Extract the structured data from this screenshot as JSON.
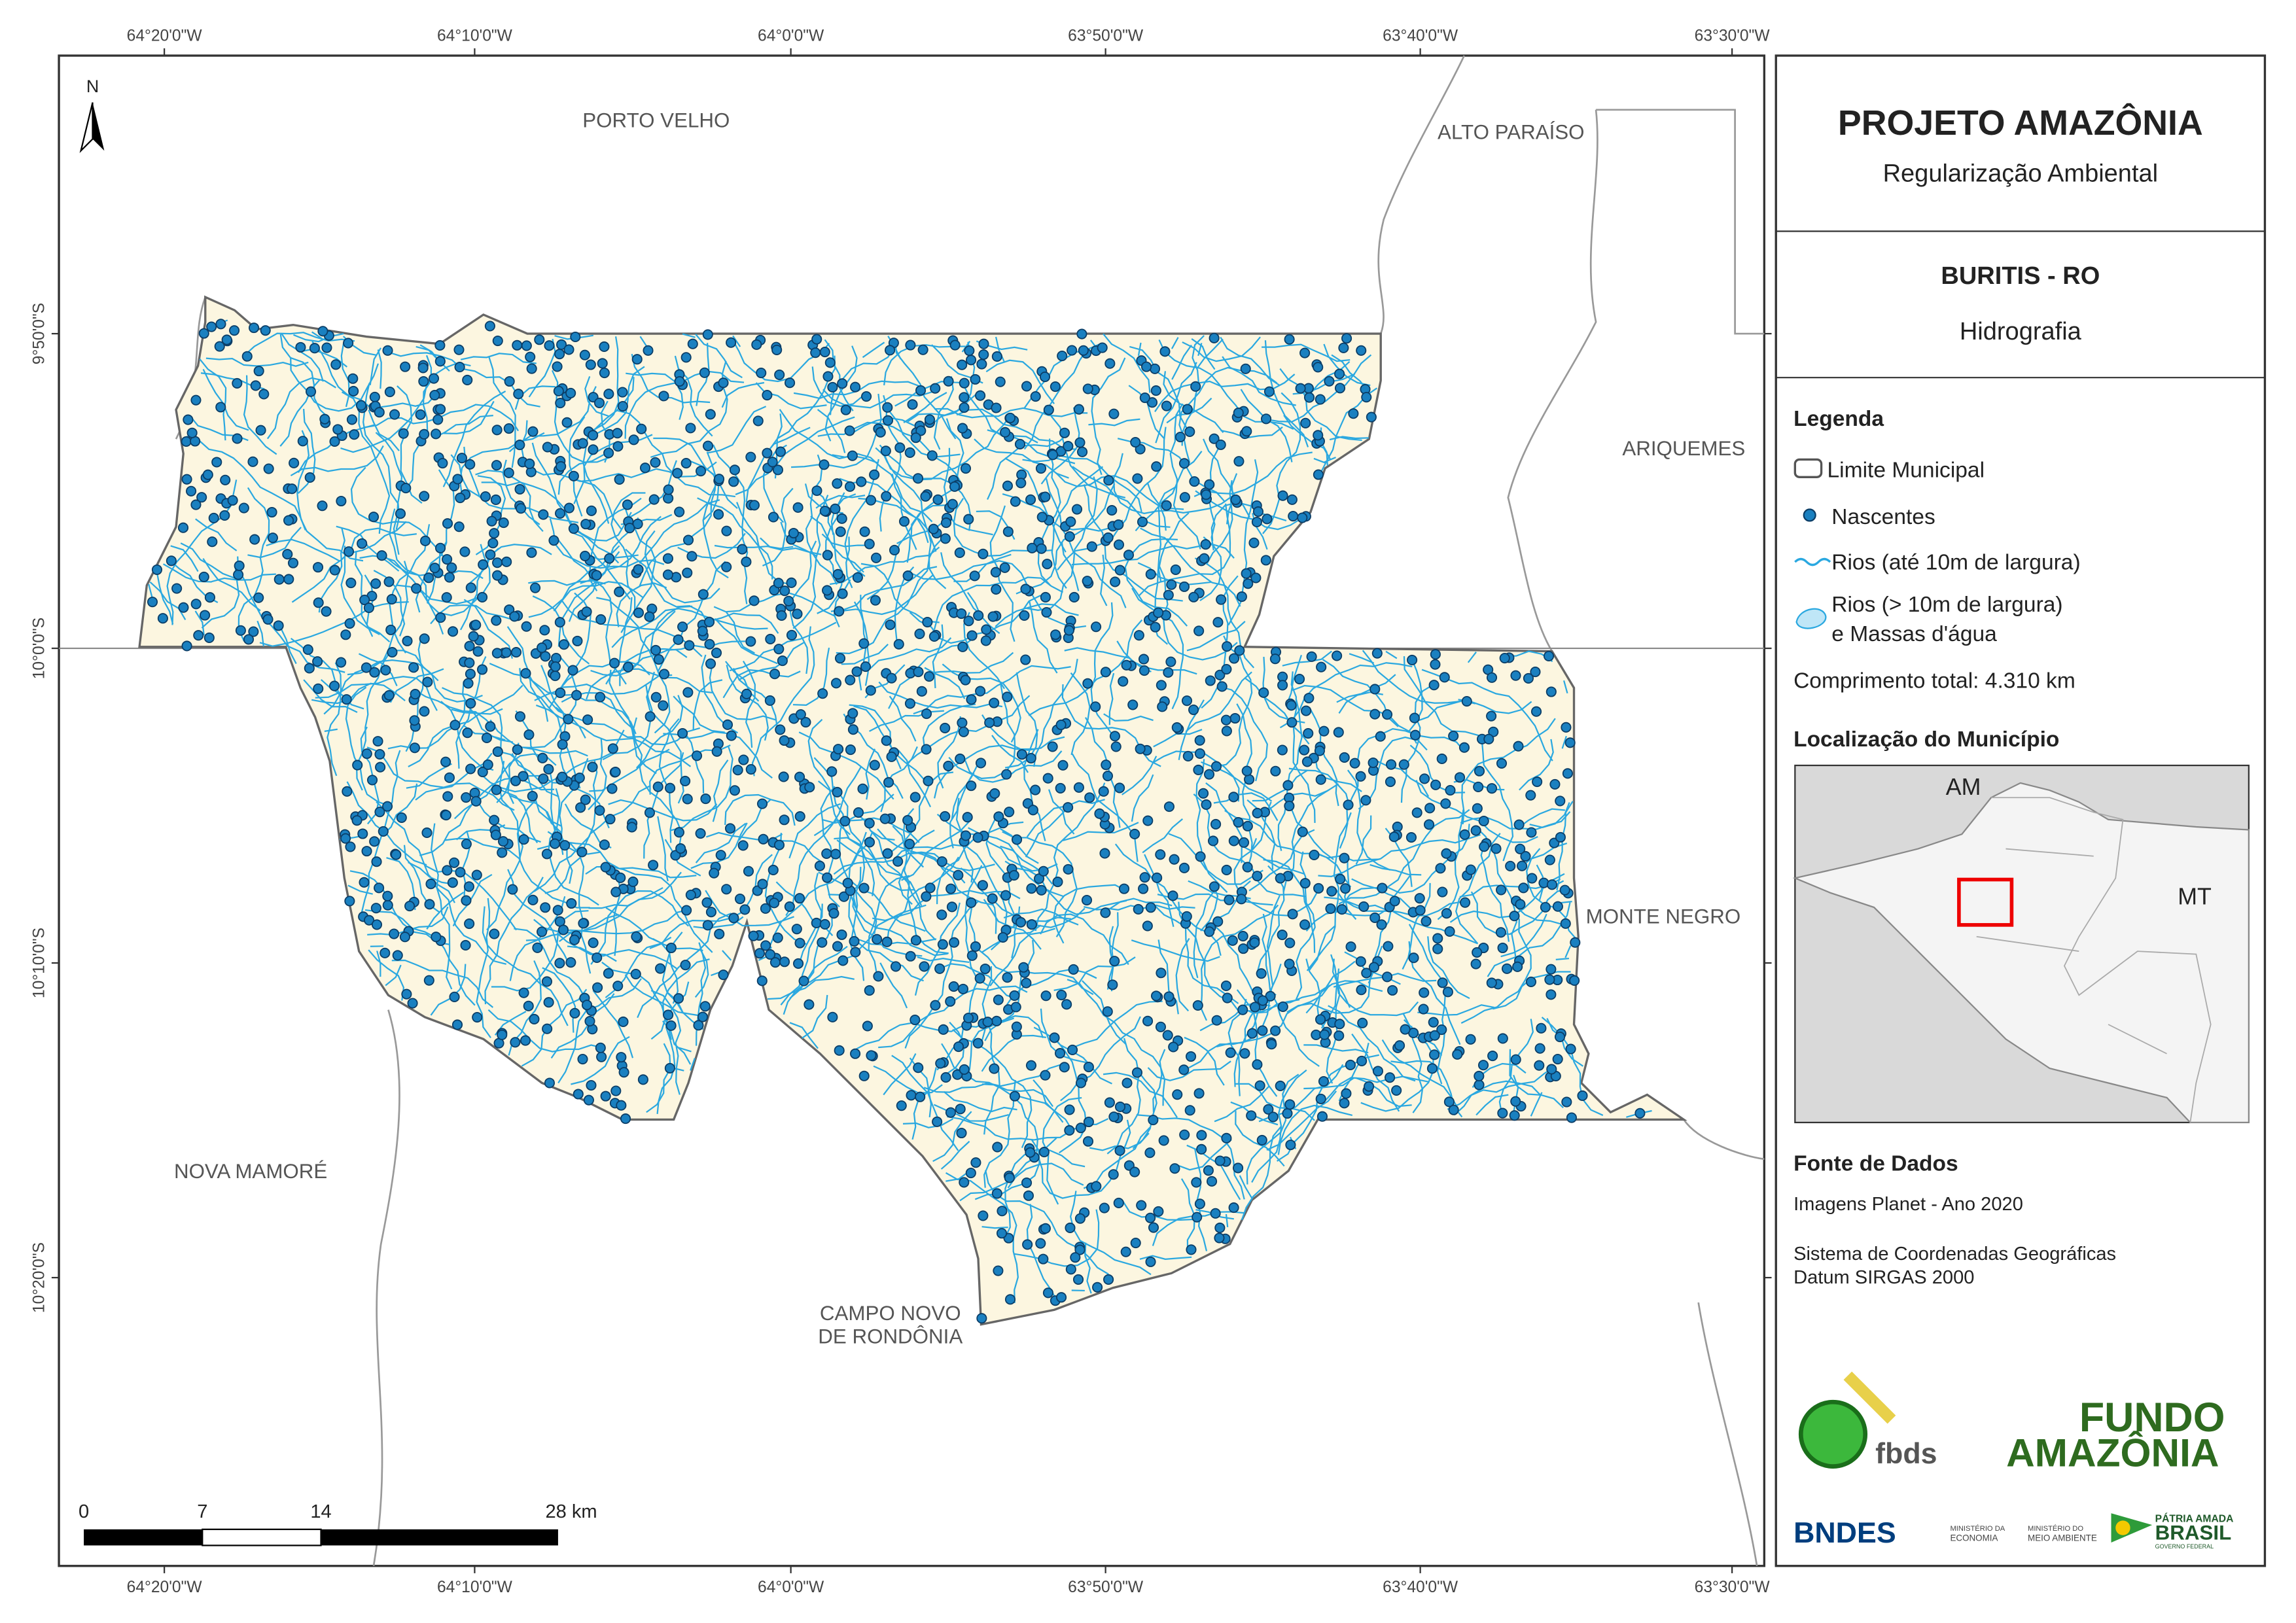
{
  "map": {
    "north": "N",
    "lon_labels": [
      "64°20'0\"W",
      "64°10'0\"W",
      "64°0'0\"W",
      "63°50'0\"W",
      "63°40'0\"W",
      "63°30'0\"W"
    ],
    "lat_labels": [
      "9°50'0\"S",
      "10°0'0\"S",
      "10°10'0\"S",
      "10°20'0\"S"
    ],
    "places": [
      "PORTO VELHO",
      "ALTO PARAÍSO",
      "ARIQUEMES",
      "MONTE NEGRO",
      "NOVA MAMORÉ",
      "CAMPO NOVO",
      "DE RONDÔNIA"
    ],
    "scale_bar": [
      "0",
      "7",
      "14",
      "28 km"
    ]
  },
  "panel": {
    "title": "PROJETO AMAZÔNIA",
    "subtitle": "Regularização Ambiental",
    "municipality": "BURITIS - RO",
    "theme": "Hidrografia",
    "legend": {
      "title": "Legenda",
      "items": [
        "Limite Municipal",
        "Nascentes",
        "Rios (até 10m de largura)",
        "Rios (> 10m de largura)",
        "e Massas d'água"
      ],
      "total": "Comprimento total:  4.310 km"
    },
    "locator": {
      "title": "Localização do Município",
      "labels": [
        "AM",
        "MT"
      ]
    },
    "sources": {
      "title": "Fonte de Dados",
      "lines": [
        "Imagens Planet - Ano 2020",
        "Sistema de Coordenadas Geográficas",
        "Datum SIRGAS 2000"
      ]
    },
    "logos": {
      "fbds": "fbds",
      "fundo": "FUNDO",
      "amazonia": "AMAZÔNIA",
      "bndes": "BNDES",
      "min_economia": [
        "MINISTÉRIO DA",
        "ECONOMIA"
      ],
      "min_ambiente": [
        "MINISTÉRIO DO",
        "MEIO AMBIENTE"
      ],
      "brasil": [
        "PÁTRIA AMADA",
        "BRASIL",
        "GOVERNO FEDERAL"
      ]
    }
  }
}
